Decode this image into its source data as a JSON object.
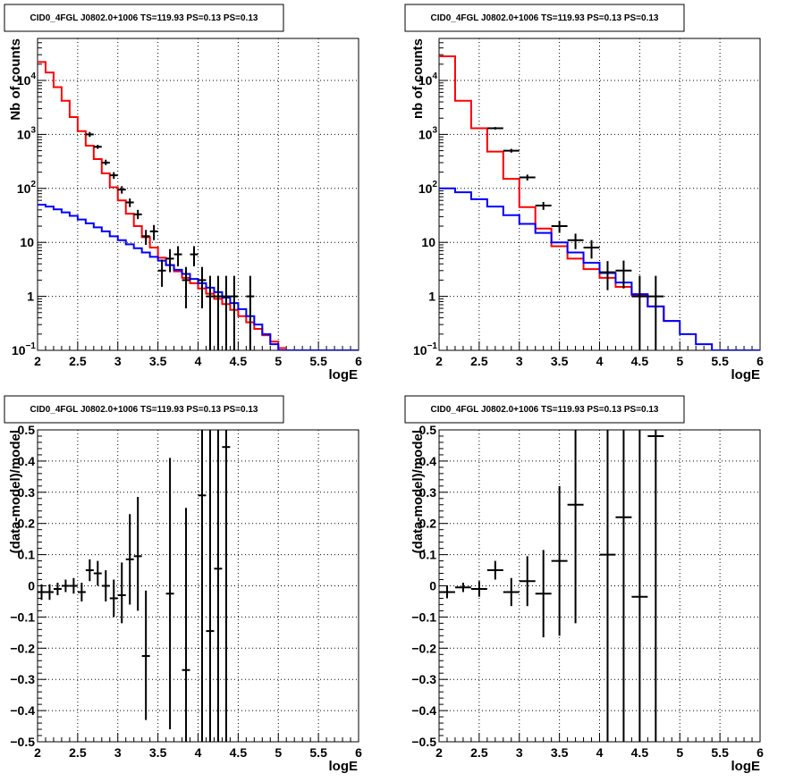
{
  "chart_data": [
    {
      "type": "line",
      "title": "CID0_4FGL J0802.0+1006 TS=119.93 PS=0.13 PS=0.13",
      "xlabel": "logE",
      "ylabel": "Nb of counts",
      "xlim": [
        2,
        6
      ],
      "ylim": [
        0.1,
        60000
      ],
      "yscale": "log",
      "grid": true,
      "x_ticks": [
        "2",
        "2.5",
        "3",
        "3.5",
        "4",
        "4.5",
        "5",
        "5.5",
        "6"
      ],
      "y_ticks": [
        {
          "v": 0.1,
          "label": "10",
          "exp": "−1"
        },
        {
          "v": 1,
          "label": "1",
          "exp": ""
        },
        {
          "v": 10,
          "label": "10",
          "exp": ""
        },
        {
          "v": 100,
          "label": "10",
          "exp": "2"
        },
        {
          "v": 1000,
          "label": "10",
          "exp": "3"
        },
        {
          "v": 10000,
          "label": "10",
          "exp": "4"
        }
      ],
      "series": [
        {
          "name": "",
          "kind": "step",
          "color": "#ff0000",
          "binwidth": 0.1,
          "x": [
            2.05,
            2.15,
            2.25,
            2.35,
            2.45,
            2.55,
            2.65,
            2.75,
            2.85,
            2.95,
            3.05,
            3.15,
            3.25,
            3.35,
            3.45,
            3.55,
            3.65,
            3.75,
            3.85,
            3.95,
            4.05,
            4.15,
            4.25,
            4.35,
            4.45,
            4.55,
            4.65,
            4.75,
            4.85,
            4.95,
            5.05
          ],
          "values": [
            22000,
            14000,
            7500,
            4200,
            2100,
            1150,
            620,
            350,
            190,
            105,
            60,
            34,
            20,
            12.5,
            8,
            5.2,
            3.8,
            2.9,
            2.2,
            1.75,
            1.4,
            1.12,
            0.9,
            0.72,
            0.56,
            0.43,
            0.33,
            0.25,
            0.19,
            0.145,
            0.11
          ]
        },
        {
          "name": "",
          "kind": "step",
          "color": "#0000ff",
          "binwidth": 0.1,
          "x": [
            2.05,
            2.15,
            2.25,
            2.35,
            2.45,
            2.55,
            2.65,
            2.75,
            2.85,
            2.95,
            3.05,
            3.15,
            3.25,
            3.35,
            3.45,
            3.55,
            3.65,
            3.75,
            3.85,
            3.95,
            4.05,
            4.15,
            4.25,
            4.35,
            4.45,
            4.55,
            4.65,
            4.75,
            4.85,
            4.95,
            5.05,
            5.15,
            5.25,
            5.35,
            5.45,
            5.55,
            5.65,
            5.75,
            5.85,
            5.95
          ],
          "values": [
            50,
            46,
            41,
            36,
            31,
            26.5,
            22.5,
            19,
            16,
            13,
            11,
            9.2,
            7.8,
            6.5,
            5.4,
            4.6,
            3.8,
            3.1,
            2.6,
            2.1,
            1.75,
            1.45,
            1.2,
            0.95,
            0.75,
            0.58,
            0.43,
            0.3,
            0.2,
            0.13,
            0.1,
            0.1,
            0.1,
            0.1,
            0.1,
            0.1,
            0.1,
            0.1,
            0.1,
            0.1
          ]
        },
        {
          "name": "",
          "kind": "points",
          "color": "#000000",
          "xerr": 0.05,
          "x": [
            2.65,
            2.75,
            2.85,
            2.95,
            3.05,
            3.15,
            3.25,
            3.35,
            3.45,
            3.55,
            3.65,
            3.75,
            3.85,
            3.95,
            4.05,
            4.15,
            4.25,
            4.35,
            4.45,
            4.65
          ],
          "values": [
            1000,
            590,
            300,
            175,
            95,
            55,
            33,
            13,
            16,
            3,
            5,
            6,
            2,
            6,
            2,
            1,
            1,
            1,
            1,
            1
          ],
          "ylo": [
            900,
            540,
            270,
            150,
            80,
            45,
            27,
            9,
            11,
            1.5,
            2.8,
            3.6,
            0.6,
            3.6,
            0.6,
            0.1,
            0.1,
            0.1,
            0.1,
            0.1
          ],
          "yhi": [
            1110,
            640,
            340,
            200,
            110,
            65,
            40,
            17,
            21,
            4.8,
            7.5,
            8.5,
            3.5,
            8.5,
            3.5,
            2.4,
            2.4,
            2.4,
            2.4,
            2.4
          ]
        }
      ]
    },
    {
      "type": "line",
      "title": "CID0_4FGL J0802.0+1006 TS=119.93 PS=0.13 PS=0.13",
      "xlabel": "logE",
      "ylabel": "nb of counts",
      "xlim": [
        2,
        6
      ],
      "ylim": [
        0.1,
        60000
      ],
      "yscale": "log",
      "grid": true,
      "x_ticks": [
        "2",
        "2.5",
        "3",
        "3.5",
        "4",
        "4.5",
        "5",
        "5.5",
        "6"
      ],
      "y_ticks": [
        {
          "v": 0.1,
          "label": "10",
          "exp": "−1"
        },
        {
          "v": 1,
          "label": "1",
          "exp": ""
        },
        {
          "v": 10,
          "label": "10",
          "exp": ""
        },
        {
          "v": 100,
          "label": "10",
          "exp": "2"
        },
        {
          "v": 1000,
          "label": "10",
          "exp": "3"
        },
        {
          "v": 10000,
          "label": "10",
          "exp": "4"
        }
      ],
      "series": [
        {
          "name": "",
          "kind": "step",
          "color": "#ff0000",
          "binwidth": 0.2,
          "x": [
            2.1,
            2.3,
            2.5,
            2.7,
            2.9,
            3.1,
            3.3,
            3.5,
            3.7,
            3.9,
            4.1,
            4.3,
            4.5,
            4.7,
            4.9
          ],
          "values": [
            28000,
            4200,
            1300,
            480,
            150,
            45,
            18,
            8.5,
            5,
            3.2,
            2.2,
            1.5,
            1.05,
            0.65,
            0.35
          ]
        },
        {
          "name": "",
          "kind": "step",
          "color": "#0000ff",
          "binwidth": 0.2,
          "x": [
            2.1,
            2.3,
            2.5,
            2.7,
            2.9,
            3.1,
            3.3,
            3.5,
            3.7,
            3.9,
            4.1,
            4.3,
            4.5,
            4.7,
            4.9,
            5.1,
            5.3,
            5.5,
            5.7,
            5.9
          ],
          "values": [
            100,
            85,
            63,
            46,
            32,
            22,
            15,
            10,
            6.5,
            4.2,
            2.7,
            1.8,
            1.1,
            0.65,
            0.35,
            0.2,
            0.13,
            0.1,
            0.1,
            0.1
          ]
        },
        {
          "name": "",
          "kind": "points",
          "color": "#000000",
          "xerr": 0.1,
          "x": [
            2.7,
            2.9,
            3.1,
            3.3,
            3.5,
            3.7,
            3.9,
            4.1,
            4.3,
            4.5,
            4.7
          ],
          "values": [
            1300,
            500,
            160,
            48,
            20,
            11,
            8,
            2.8,
            3,
            1,
            1
          ],
          "ylo": [
            1230,
            460,
            140,
            40,
            15,
            7.5,
            5,
            1.3,
            1.4,
            0.1,
            0.1
          ],
          "yhi": [
            1370,
            540,
            180,
            56,
            25,
            14.5,
            11,
            4.5,
            4.6,
            2.4,
            2.4
          ]
        }
      ]
    },
    {
      "type": "scatter",
      "title": "CID0_4FGL J0802.0+1006 TS=119.93 PS=0.13 PS=0.13",
      "xlabel": "logE",
      "ylabel": "(data-model)/model",
      "xlim": [
        2,
        6
      ],
      "ylim": [
        -0.5,
        0.5
      ],
      "grid": true,
      "x_ticks": [
        "2",
        "2.5",
        "3",
        "3.5",
        "4",
        "4.5",
        "5",
        "5.5",
        "6"
      ],
      "y_ticks": [
        "−0.5",
        "−0.4",
        "−0.3",
        "−0.2",
        "−0.1",
        "0",
        "0.1",
        "0.2",
        "0.3",
        "0.4",
        "0.5"
      ],
      "series": [
        {
          "name": "",
          "color": "#000000",
          "xerr": 0.05,
          "x": [
            2.05,
            2.15,
            2.25,
            2.35,
            2.45,
            2.55,
            2.65,
            2.75,
            2.85,
            2.95,
            3.05,
            3.15,
            3.25,
            3.35,
            3.65,
            3.85,
            4.05,
            4.15,
            4.25,
            4.35
          ],
          "values": [
            -0.02,
            -0.02,
            -0.01,
            0,
            0,
            -0.02,
            0.05,
            0.04,
            0,
            -0.04,
            -0.03,
            0.085,
            0.095,
            -0.225,
            -0.025,
            -0.27,
            0.29,
            -0.145,
            0.055,
            0.445
          ],
          "ylo": [
            -0.045,
            -0.045,
            -0.03,
            -0.02,
            -0.025,
            -0.05,
            0.015,
            0,
            -0.05,
            -0.1,
            -0.12,
            -0.06,
            -0.08,
            -0.43,
            -0.46,
            -0.5,
            -0.5,
            -0.5,
            -0.5,
            -0.5
          ],
          "yhi": [
            0.005,
            0.005,
            0.01,
            0.02,
            0.025,
            0.01,
            0.085,
            0.08,
            0.05,
            0.02,
            0.075,
            0.23,
            0.285,
            -0.015,
            0.41,
            0.25,
            0.5,
            0.5,
            0.5,
            0.5
          ]
        }
      ]
    },
    {
      "type": "scatter",
      "title": "CID0_4FGL J0802.0+1006 TS=119.93 PS=0.13 PS=0.13",
      "xlabel": "logE",
      "ylabel": "(data-model)/model",
      "xlim": [
        2,
        6
      ],
      "ylim": [
        -0.5,
        0.5
      ],
      "grid": true,
      "x_ticks": [
        "2",
        "2.5",
        "3",
        "3.5",
        "4",
        "4.5",
        "5",
        "5.5",
        "6"
      ],
      "y_ticks": [
        "−0.5",
        "−0.4",
        "−0.3",
        "−0.2",
        "−0.1",
        "0",
        "0.1",
        "0.2",
        "0.3",
        "0.4",
        "0.5"
      ],
      "series": [
        {
          "name": "",
          "color": "#000000",
          "xerr": 0.1,
          "x": [
            2.1,
            2.3,
            2.5,
            2.7,
            2.9,
            3.1,
            3.3,
            3.5,
            3.7,
            4.1,
            4.3,
            4.5,
            4.7
          ],
          "values": [
            -0.02,
            -0.005,
            -0.01,
            0.05,
            -0.02,
            0.015,
            -0.025,
            0.08,
            0.26,
            0.1,
            0.22,
            -0.035,
            0.48
          ],
          "ylo": [
            -0.04,
            -0.02,
            -0.035,
            0.02,
            -0.065,
            -0.065,
            -0.165,
            -0.16,
            -0.12,
            -0.5,
            -0.5,
            -0.5,
            -0.5
          ],
          "yhi": [
            0,
            0.01,
            0.015,
            0.08,
            0.025,
            0.095,
            0.115,
            0.32,
            0.5,
            0.5,
            0.5,
            0.5,
            0.5
          ]
        }
      ]
    }
  ]
}
